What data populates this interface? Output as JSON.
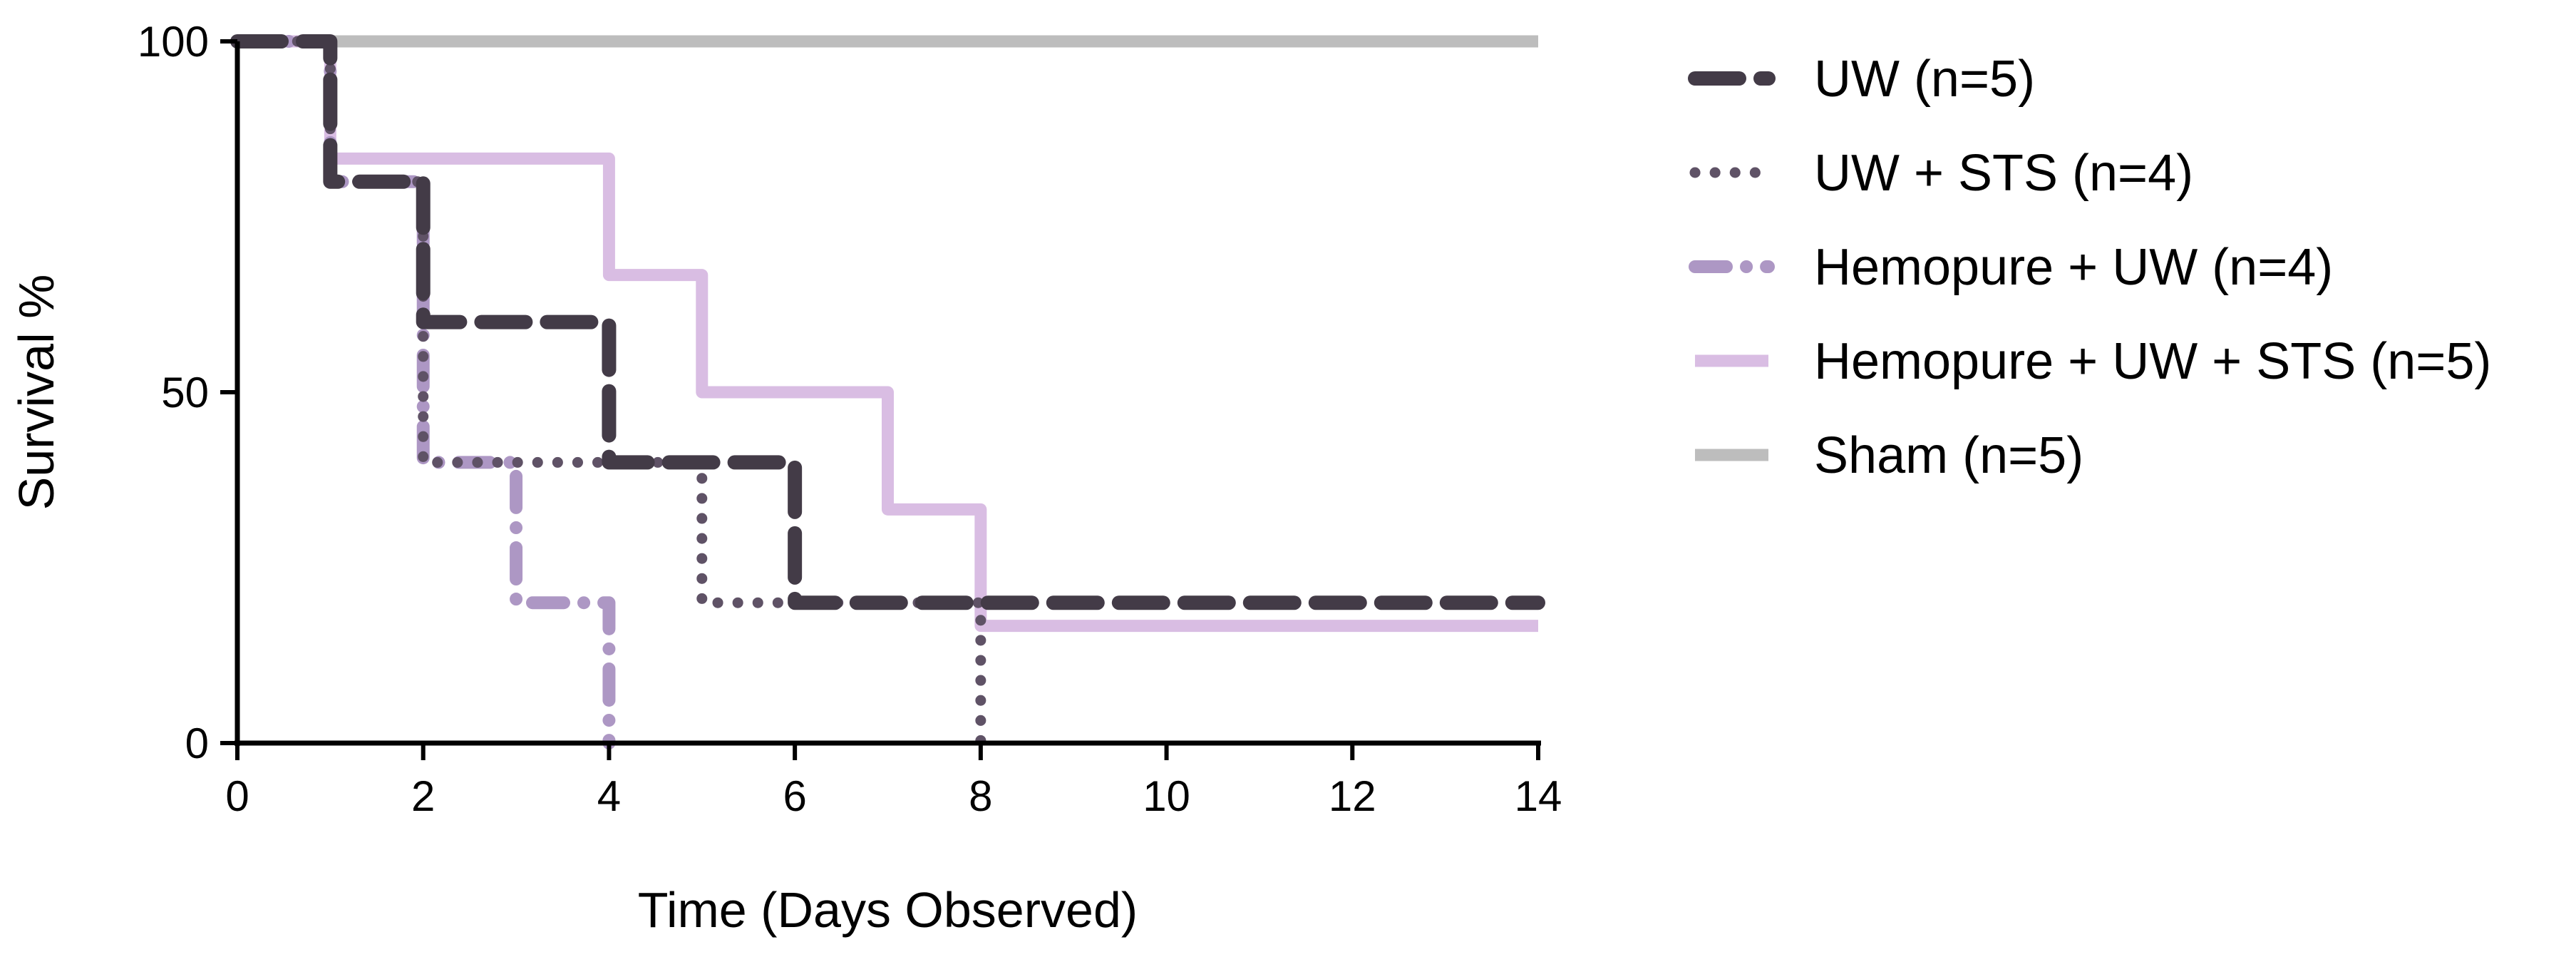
{
  "chart_data": {
    "type": "line",
    "step": true,
    "xlabel": "Time (Days Observed)",
    "ylabel": "Survival %",
    "xlim": [
      0,
      14
    ],
    "ylim": [
      0,
      100
    ],
    "xticks": [
      "0",
      "2",
      "4",
      "6",
      "8",
      "10",
      "12",
      "14"
    ],
    "yticks": [
      "0",
      "50",
      "100"
    ],
    "grid": false,
    "legend_position": "right",
    "series": [
      {
        "name": "UW (n=5)",
        "color": "#433b47",
        "line_style": "dashed",
        "x": [
          0,
          1,
          2,
          4,
          6,
          14
        ],
        "y": [
          100,
          80,
          60,
          40,
          20,
          20
        ]
      },
      {
        "name": "UW + STS (n=4)",
        "color": "#5f5266",
        "line_style": "dotted",
        "x": [
          0,
          1,
          2,
          5,
          8
        ],
        "y": [
          100,
          80,
          40,
          20,
          0
        ]
      },
      {
        "name": "Hemopure + UW (n=4)",
        "color": "#ad97c4",
        "line_style": "dash-dot",
        "x": [
          0,
          1,
          2,
          3,
          4
        ],
        "y": [
          100,
          80,
          40,
          20,
          0
        ]
      },
      {
        "name": "Hemopure + UW + STS (n=5)",
        "color": "#d9bde3",
        "line_style": "solid",
        "x": [
          0,
          1,
          4,
          5,
          7,
          8,
          14
        ],
        "y": [
          100,
          83.3,
          66.7,
          50,
          33.3,
          16.7,
          16.7
        ]
      },
      {
        "name": "Sham (n=5)",
        "color": "#bdbdbd",
        "line_style": "solid",
        "x": [
          0,
          14
        ],
        "y": [
          100,
          100
        ]
      }
    ]
  }
}
